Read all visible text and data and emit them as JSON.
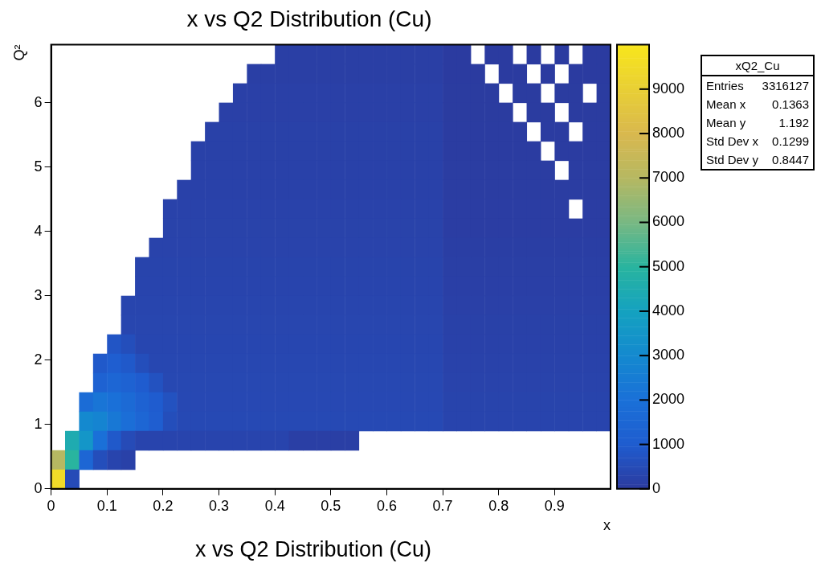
{
  "chart_data": {
    "type": "heatmap",
    "title": "x vs Q2 Distribution (Cu)",
    "xlabel": "x",
    "ylabel": "Q²",
    "x": [
      0.0125,
      0.0375,
      0.0625,
      0.0875,
      0.1125,
      0.1375,
      0.1625,
      0.1875,
      0.2125,
      0.2375,
      0.2625,
      0.2875,
      0.3125,
      0.3375,
      0.3625,
      0.3875,
      0.4125,
      0.4375,
      0.4625,
      0.4875,
      0.5125,
      0.5375,
      0.5625,
      0.5875,
      0.6125,
      0.6375,
      0.6625,
      0.6875,
      0.7125,
      0.7375,
      0.7625,
      0.7875,
      0.8125,
      0.8375,
      0.8625,
      0.8875,
      0.9125,
      0.9375,
      0.9625,
      0.9875
    ],
    "y": [
      6.75,
      6.45,
      6.15,
      5.85,
      5.55,
      5.25,
      4.95,
      4.65,
      4.35,
      4.05,
      3.75,
      3.45,
      3.15,
      2.85,
      2.55,
      2.25,
      1.95,
      1.65,
      1.35,
      1.05,
      0.75,
      0.45,
      0.15
    ],
    "cells": [
      [
        null,
        null,
        null,
        null,
        null,
        null,
        null,
        null,
        null,
        null,
        null,
        null,
        null,
        null,
        null,
        null,
        150,
        150,
        150,
        150,
        150,
        150,
        150,
        150,
        150,
        150,
        150,
        150,
        40,
        40,
        null,
        40,
        40,
        null,
        40,
        null,
        40,
        null,
        40,
        40
      ],
      [
        null,
        null,
        null,
        null,
        null,
        null,
        null,
        null,
        null,
        null,
        null,
        null,
        null,
        null,
        150,
        150,
        150,
        150,
        150,
        150,
        150,
        150,
        150,
        150,
        150,
        150,
        150,
        150,
        40,
        40,
        40,
        null,
        40,
        40,
        null,
        40,
        null,
        40,
        40,
        40
      ],
      [
        null,
        null,
        null,
        null,
        null,
        null,
        null,
        null,
        null,
        null,
        null,
        null,
        null,
        180,
        180,
        180,
        180,
        180,
        180,
        180,
        180,
        180,
        180,
        180,
        180,
        180,
        180,
        180,
        50,
        50,
        50,
        50,
        null,
        50,
        50,
        null,
        50,
        50,
        null,
        50
      ],
      [
        null,
        null,
        null,
        null,
        null,
        null,
        null,
        null,
        null,
        null,
        null,
        null,
        180,
        180,
        180,
        180,
        180,
        180,
        180,
        180,
        180,
        180,
        180,
        180,
        180,
        180,
        180,
        180,
        50,
        50,
        50,
        50,
        50,
        null,
        50,
        50,
        null,
        50,
        50,
        50
      ],
      [
        null,
        null,
        null,
        null,
        null,
        null,
        null,
        null,
        null,
        null,
        null,
        200,
        200,
        200,
        200,
        200,
        200,
        200,
        200,
        200,
        200,
        200,
        200,
        200,
        200,
        200,
        200,
        200,
        60,
        60,
        60,
        60,
        60,
        60,
        null,
        60,
        60,
        null,
        60,
        60
      ],
      [
        null,
        null,
        null,
        null,
        null,
        null,
        null,
        null,
        null,
        null,
        200,
        200,
        200,
        200,
        200,
        200,
        200,
        200,
        200,
        200,
        200,
        200,
        200,
        200,
        200,
        200,
        200,
        200,
        60,
        60,
        60,
        60,
        60,
        60,
        60,
        null,
        60,
        60,
        60,
        60
      ],
      [
        null,
        null,
        null,
        null,
        null,
        null,
        null,
        null,
        null,
        null,
        220,
        220,
        220,
        220,
        220,
        220,
        220,
        220,
        220,
        220,
        220,
        220,
        220,
        220,
        220,
        220,
        220,
        220,
        80,
        80,
        80,
        80,
        80,
        80,
        80,
        80,
        null,
        80,
        80,
        80
      ],
      [
        null,
        null,
        null,
        null,
        null,
        null,
        null,
        null,
        null,
        220,
        220,
        220,
        220,
        220,
        220,
        220,
        220,
        220,
        220,
        220,
        220,
        220,
        220,
        220,
        220,
        220,
        220,
        220,
        80,
        80,
        80,
        80,
        80,
        80,
        80,
        80,
        80,
        80,
        80,
        80
      ],
      [
        null,
        null,
        null,
        null,
        null,
        null,
        null,
        null,
        240,
        240,
        240,
        240,
        240,
        240,
        240,
        240,
        240,
        240,
        240,
        240,
        240,
        240,
        240,
        240,
        240,
        240,
        240,
        240,
        100,
        100,
        100,
        100,
        100,
        100,
        100,
        100,
        100,
        null,
        100,
        100
      ],
      [
        null,
        null,
        null,
        null,
        null,
        null,
        null,
        null,
        250,
        250,
        250,
        250,
        250,
        250,
        250,
        250,
        250,
        250,
        250,
        250,
        250,
        250,
        250,
        250,
        250,
        250,
        250,
        250,
        100,
        100,
        100,
        100,
        100,
        100,
        100,
        100,
        100,
        100,
        100,
        100
      ],
      [
        null,
        null,
        null,
        null,
        null,
        null,
        null,
        260,
        260,
        260,
        260,
        260,
        260,
        260,
        260,
        260,
        260,
        260,
        260,
        260,
        260,
        260,
        260,
        260,
        260,
        260,
        260,
        260,
        120,
        120,
        120,
        120,
        120,
        120,
        120,
        120,
        120,
        120,
        120,
        120
      ],
      [
        null,
        null,
        null,
        null,
        null,
        null,
        280,
        280,
        280,
        280,
        280,
        280,
        280,
        280,
        280,
        280,
        280,
        280,
        280,
        280,
        280,
        280,
        280,
        280,
        280,
        280,
        280,
        280,
        140,
        140,
        140,
        140,
        140,
        140,
        140,
        140,
        140,
        140,
        140,
        140
      ],
      [
        null,
        null,
        null,
        null,
        null,
        null,
        300,
        300,
        300,
        300,
        300,
        300,
        300,
        300,
        300,
        300,
        300,
        300,
        300,
        300,
        300,
        300,
        300,
        300,
        300,
        300,
        300,
        300,
        160,
        160,
        160,
        160,
        160,
        160,
        160,
        160,
        160,
        160,
        160,
        160
      ],
      [
        null,
        null,
        null,
        null,
        null,
        320,
        320,
        320,
        320,
        320,
        320,
        320,
        320,
        320,
        320,
        320,
        320,
        320,
        320,
        320,
        320,
        320,
        320,
        320,
        320,
        320,
        320,
        320,
        180,
        180,
        180,
        180,
        180,
        180,
        180,
        180,
        180,
        180,
        180,
        180
      ],
      [
        null,
        null,
        null,
        null,
        null,
        340,
        340,
        340,
        340,
        340,
        340,
        340,
        340,
        340,
        340,
        340,
        340,
        340,
        340,
        340,
        340,
        340,
        340,
        340,
        340,
        340,
        340,
        340,
        200,
        200,
        200,
        200,
        200,
        200,
        200,
        200,
        200,
        200,
        200,
        200
      ],
      [
        null,
        null,
        null,
        null,
        800,
        600,
        360,
        360,
        360,
        360,
        360,
        360,
        360,
        360,
        360,
        360,
        360,
        360,
        360,
        360,
        360,
        360,
        360,
        360,
        360,
        360,
        360,
        360,
        220,
        220,
        220,
        220,
        220,
        220,
        220,
        220,
        220,
        220,
        220,
        220
      ],
      [
        null,
        null,
        null,
        900,
        1100,
        900,
        600,
        380,
        380,
        380,
        380,
        380,
        380,
        380,
        380,
        380,
        380,
        380,
        380,
        380,
        380,
        380,
        380,
        380,
        380,
        380,
        380,
        380,
        240,
        240,
        240,
        240,
        240,
        240,
        240,
        240,
        240,
        240,
        240,
        240
      ],
      [
        null,
        null,
        null,
        1300,
        1500,
        1300,
        1000,
        700,
        400,
        400,
        400,
        400,
        400,
        400,
        400,
        400,
        400,
        400,
        400,
        400,
        400,
        400,
        400,
        400,
        400,
        400,
        400,
        400,
        260,
        260,
        260,
        260,
        260,
        260,
        260,
        260,
        260,
        260,
        260,
        260
      ],
      [
        null,
        null,
        1800,
        2200,
        2000,
        1700,
        1300,
        1000,
        700,
        420,
        420,
        420,
        420,
        420,
        420,
        420,
        420,
        420,
        420,
        420,
        420,
        420,
        420,
        420,
        420,
        420,
        420,
        420,
        280,
        280,
        280,
        280,
        280,
        280,
        280,
        280,
        280,
        280,
        280,
        280
      ],
      [
        null,
        null,
        3000,
        2800,
        2300,
        1900,
        1500,
        1100,
        600,
        450,
        450,
        450,
        450,
        450,
        450,
        450,
        450,
        450,
        450,
        450,
        450,
        450,
        450,
        450,
        450,
        450,
        450,
        450,
        300,
        300,
        300,
        300,
        300,
        300,
        300,
        300,
        300,
        300,
        300,
        300
      ],
      [
        null,
        4500,
        3500,
        2000,
        900,
        500,
        300,
        300,
        300,
        300,
        300,
        300,
        300,
        300,
        300,
        300,
        300,
        150,
        150,
        150,
        150,
        150,
        null,
        null,
        null,
        null,
        null,
        null,
        null,
        null,
        null,
        null,
        null,
        null,
        null,
        null,
        null,
        null,
        null,
        null
      ],
      [
        7000,
        5000,
        1500,
        600,
        300,
        200,
        null,
        null,
        null,
        null,
        null,
        null,
        null,
        null,
        null,
        null,
        null,
        null,
        null,
        null,
        null,
        null,
        null,
        null,
        null,
        null,
        null,
        null,
        null,
        null,
        null,
        null,
        null,
        null,
        null,
        null,
        null,
        null,
        null,
        null
      ],
      [
        9500,
        500,
        null,
        null,
        null,
        null,
        null,
        null,
        null,
        null,
        null,
        null,
        null,
        null,
        null,
        null,
        null,
        null,
        null,
        null,
        null,
        null,
        null,
        null,
        null,
        null,
        null,
        null,
        null,
        null,
        null,
        null,
        null,
        null,
        null,
        null,
        null,
        null,
        null,
        null
      ]
    ],
    "xlim": [
      0,
      1
    ],
    "xticks": [
      0,
      0.1,
      0.2,
      0.3,
      0.4,
      0.5,
      0.6,
      0.7,
      0.8,
      0.9
    ],
    "ylim": [
      0,
      6.9
    ],
    "yticks": [
      0,
      1,
      2,
      3,
      4,
      5,
      6
    ],
    "clim": [
      0,
      10000
    ],
    "cticks": [
      0,
      1000,
      2000,
      3000,
      4000,
      5000,
      6000,
      7000,
      8000,
      9000
    ],
    "annotations": [
      "xQ2_Cu",
      "Entries 3316127",
      "Mean x 0.1363",
      "Mean y 1.192",
      "Std Dev x 0.1299",
      "Std Dev y 0.8447",
      "x vs Q2 Distribution (Cu)"
    ]
  }
}
